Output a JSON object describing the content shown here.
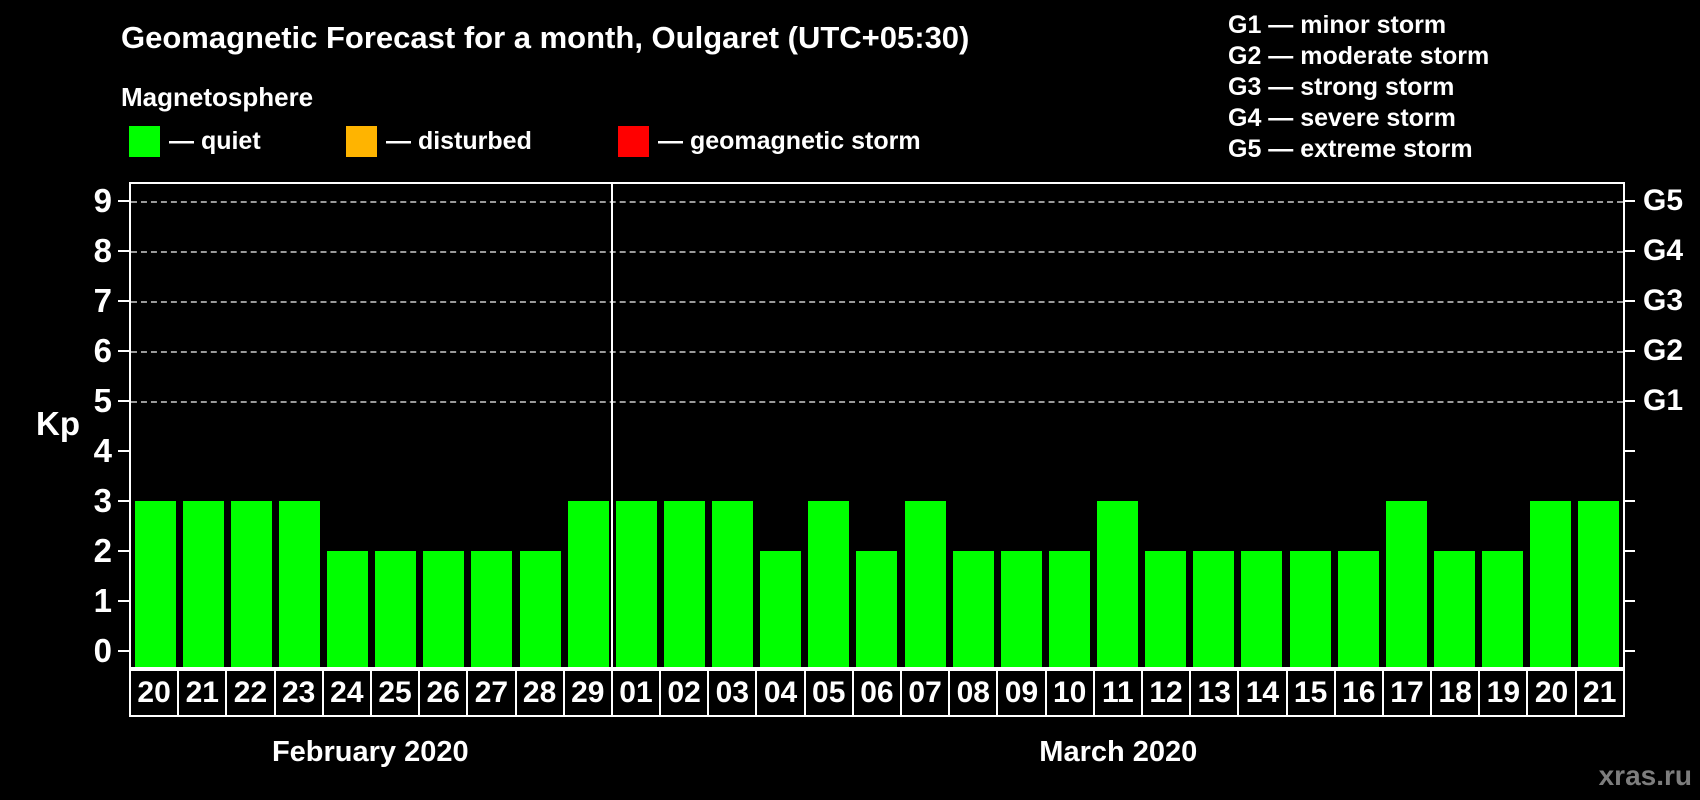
{
  "title": "Geomagnetic Forecast for a month, Oulgaret (UTC+05:30)",
  "magnetosphere_legend": {
    "heading": "Magnetosphere",
    "items": [
      {
        "name": "quiet",
        "label": "— quiet",
        "color": "#00ff00"
      },
      {
        "name": "disturbed",
        "label": "— disturbed",
        "color": "#ffb400"
      },
      {
        "name": "geomagnetic-storm",
        "label": "— geomagnetic storm",
        "color": "#ff0000"
      }
    ]
  },
  "storm_scale_legend": [
    "G1 — minor storm",
    "G2 — moderate storm",
    "G3 — strong storm",
    "G4 — severe storm",
    "G5 — extreme storm"
  ],
  "watermark": "xras.ru",
  "colors": {
    "background": "#000000",
    "text": "#ffffff",
    "grid": "#9a9a9a",
    "axis_border": "#ffffff",
    "watermark_text": "#7d7d7d"
  },
  "chart_data": {
    "type": "bar",
    "title": "Geomagnetic Forecast for a month, Oulgaret (UTC+05:30)",
    "ylabel": "Kp",
    "ylim": [
      0,
      9
    ],
    "y_ticks": [
      0,
      1,
      2,
      3,
      4,
      5,
      6,
      7,
      8,
      9
    ],
    "gridlines_at_kp": [
      5,
      6,
      7,
      8,
      9
    ],
    "grid_style": "dashed",
    "legend_position": "top",
    "right_axis_labels": [
      {
        "kp": 5,
        "label": "G1"
      },
      {
        "kp": 6,
        "label": "G2"
      },
      {
        "kp": 7,
        "label": "G3"
      },
      {
        "kp": 8,
        "label": "G4"
      },
      {
        "kp": 9,
        "label": "G5"
      }
    ],
    "bar_status_all": "quiet",
    "bar_color_hex": "#00ff00",
    "months": [
      {
        "label": "February 2020",
        "days": [
          "20",
          "21",
          "22",
          "23",
          "24",
          "25",
          "26",
          "27",
          "28",
          "29"
        ],
        "kp_values": [
          3,
          3,
          3,
          3,
          2,
          2,
          2,
          2,
          2,
          3
        ]
      },
      {
        "label": "March 2020",
        "days": [
          "01",
          "02",
          "03",
          "04",
          "05",
          "06",
          "07",
          "08",
          "09",
          "10",
          "11",
          "12",
          "13",
          "14",
          "15",
          "16",
          "17",
          "18",
          "19",
          "20",
          "21"
        ],
        "kp_values": [
          3,
          3,
          3,
          2,
          3,
          2,
          3,
          2,
          2,
          2,
          3,
          2,
          2,
          2,
          2,
          2,
          3,
          2,
          2,
          3,
          3
        ]
      }
    ]
  }
}
